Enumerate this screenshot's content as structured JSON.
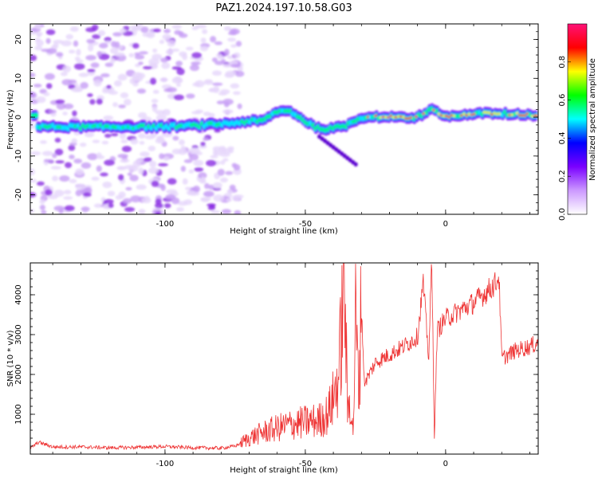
{
  "figure": {
    "title": "PAZ1.2024.197.10.58.G03"
  },
  "chart_data": [
    {
      "type": "heatmap",
      "title": "PAZ1.2024.197.10.58.G03",
      "xlabel": "Height of straight line (km)",
      "ylabel": "Frequency (Hz)",
      "xlim": [
        -148,
        33
      ],
      "ylim": [
        -25,
        24
      ],
      "xticks": [
        -100,
        -50,
        0
      ],
      "yticks": [
        -20,
        -10,
        0,
        10,
        20
      ],
      "colorbar": {
        "label": "Normalized spectral amplitude",
        "range": [
          0,
          1
        ],
        "ticks": [
          0.0,
          0.2,
          0.4,
          0.6,
          0.8
        ],
        "colors": [
          "#ffffff",
          "#cc99ff",
          "#7a00ff",
          "#0000ff",
          "#00ffff",
          "#00ff00",
          "#ffff00",
          "#ff0000",
          "#ff1177"
        ]
      },
      "ridge": {
        "height_km": [
          -146,
          -135,
          -125,
          -115,
          -100,
          -85,
          -75,
          -70,
          -65,
          -60,
          -55,
          -50,
          -45,
          -40,
          -35,
          -30,
          -28,
          -20,
          -10,
          -5,
          0,
          5,
          10,
          20,
          33
        ],
        "frequency_hz": [
          -2.5,
          -2.5,
          -2.5,
          -2.5,
          -2.5,
          -2,
          -1.5,
          -1,
          -1,
          1.5,
          1.5,
          -1,
          -3,
          -3,
          -2,
          0,
          0,
          0,
          0,
          2,
          0,
          0.5,
          1,
          1,
          0.5
        ]
      },
      "noise_region_km": [
        -148,
        -73
      ]
    },
    {
      "type": "line",
      "xlabel": "Height of straight line (km)",
      "ylabel": "SNR (10 * v/v)",
      "xlim": [
        -148,
        33
      ],
      "ylim": [
        0,
        4800
      ],
      "xticks": [
        -100,
        -50,
        0
      ],
      "yticks": [
        1000,
        2000,
        3000,
        4000
      ],
      "color": "#ee3333",
      "grid": false,
      "x": [
        -148,
        -145,
        -140,
        -130,
        -120,
        -110,
        -100,
        -90,
        -80,
        -75,
        -70,
        -65,
        -60,
        -55,
        -50,
        -45,
        -42,
        -40,
        -38,
        -36,
        -35,
        -34,
        -33,
        -32,
        -31,
        -30,
        -29,
        -28,
        -25,
        -20,
        -15,
        -10,
        -8,
        -6,
        -5,
        -4.5,
        -4,
        -3,
        -1,
        0,
        5,
        10,
        15,
        18,
        19,
        20,
        25,
        30,
        33
      ],
      "values": [
        150,
        300,
        180,
        180,
        160,
        170,
        190,
        160,
        150,
        200,
        400,
        550,
        650,
        750,
        800,
        850,
        1000,
        1400,
        2000,
        4650,
        1000,
        1500,
        500,
        3500,
        1500,
        3800,
        1800,
        1900,
        2300,
        2500,
        2700,
        2950,
        4300,
        2400,
        4800,
        3000,
        400,
        3100,
        3300,
        3400,
        3600,
        3800,
        4100,
        4300,
        4500,
        2400,
        2600,
        2700,
        2800
      ]
    }
  ]
}
